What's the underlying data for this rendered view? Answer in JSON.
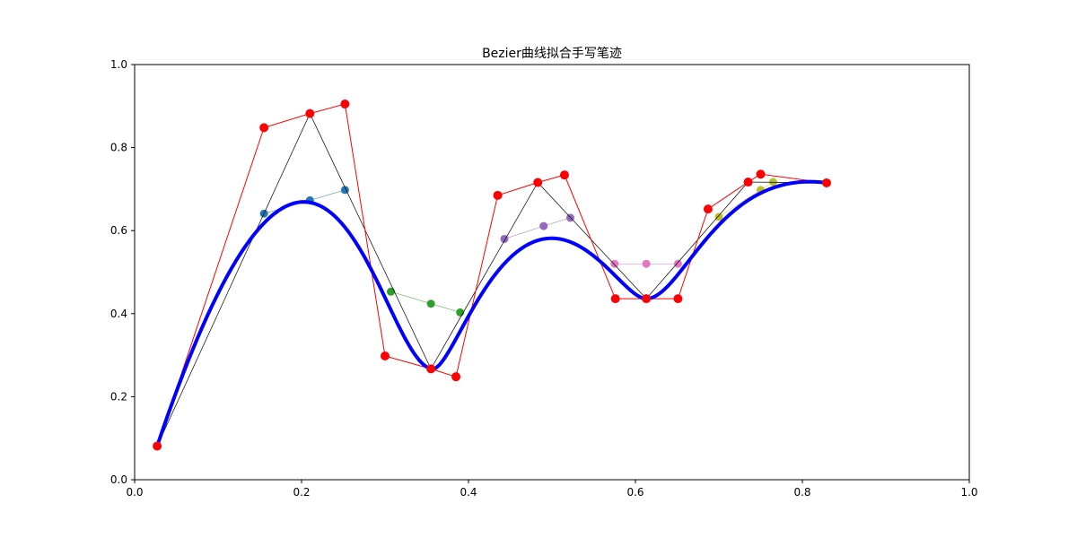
{
  "chart_data": {
    "type": "line",
    "title": "Bezier曲线拟合手写笔迹",
    "xlabel": "",
    "ylabel": "",
    "xlim": [
      0.0,
      1.0
    ],
    "ylim": [
      0.0,
      1.0
    ],
    "xticks": [
      "0.0",
      "0.2",
      "0.4",
      "0.6",
      "0.8",
      "1.0"
    ],
    "yticks": [
      "0.0",
      "0.2",
      "0.4",
      "0.6",
      "0.8",
      "1.0"
    ],
    "grid": false,
    "legend": "none",
    "original_stroke": {
      "color": "#000000",
      "points": [
        [
          0.027,
          0.081
        ],
        [
          0.21,
          0.882
        ],
        [
          0.355,
          0.267
        ],
        [
          0.483,
          0.716
        ],
        [
          0.613,
          0.436
        ],
        [
          0.735,
          0.717
        ],
        [
          0.829,
          0.715
        ]
      ]
    },
    "control_polygon": {
      "color": "#ff0000",
      "points": [
        [
          0.027,
          0.081
        ],
        [
          0.155,
          0.848
        ],
        [
          0.21,
          0.882
        ],
        [
          0.252,
          0.905
        ],
        [
          0.3,
          0.298
        ],
        [
          0.355,
          0.267
        ],
        [
          0.385,
          0.248
        ],
        [
          0.435,
          0.685
        ],
        [
          0.483,
          0.716
        ],
        [
          0.515,
          0.734
        ],
        [
          0.576,
          0.436
        ],
        [
          0.613,
          0.436
        ],
        [
          0.651,
          0.436
        ],
        [
          0.687,
          0.652
        ],
        [
          0.735,
          0.717
        ],
        [
          0.75,
          0.736
        ],
        [
          0.829,
          0.715
        ]
      ]
    },
    "bezier_curve": {
      "color": "#0000ff",
      "segments": [
        [
          [
            0.027,
            0.081
          ],
          [
            0.155,
            0.848
          ],
          [
            0.252,
            0.905
          ],
          [
            0.3,
            0.298
          ],
          [
            0.355,
            0.267
          ]
        ],
        [
          [
            0.355,
            0.267
          ],
          [
            0.385,
            0.248
          ],
          [
            0.435,
            0.685
          ],
          [
            0.515,
            0.734
          ],
          [
            0.576,
            0.436
          ],
          [
            0.613,
            0.436
          ]
        ],
        [
          [
            0.613,
            0.436
          ],
          [
            0.651,
            0.436
          ],
          [
            0.687,
            0.652
          ],
          [
            0.75,
            0.736
          ],
          [
            0.829,
            0.715
          ]
        ]
      ]
    },
    "tangent_series": [
      {
        "color": "#1f77b4",
        "points": [
          [
            0.155,
            0.641
          ],
          [
            0.21,
            0.673
          ],
          [
            0.252,
            0.698
          ]
        ]
      },
      {
        "color": "#2ca02c",
        "points": [
          [
            0.307,
            0.453
          ],
          [
            0.355,
            0.424
          ],
          [
            0.39,
            0.403
          ]
        ]
      },
      {
        "color": "#9467bd",
        "points": [
          [
            0.443,
            0.58
          ],
          [
            0.49,
            0.611
          ],
          [
            0.522,
            0.631
          ]
        ]
      },
      {
        "color": "#e377c2",
        "points": [
          [
            0.575,
            0.52
          ],
          [
            0.613,
            0.52
          ],
          [
            0.651,
            0.52
          ]
        ]
      },
      {
        "color": "#bcbd22",
        "points": [
          [
            0.7,
            0.633
          ],
          [
            0.75,
            0.698
          ],
          [
            0.765,
            0.717
          ]
        ]
      }
    ]
  }
}
